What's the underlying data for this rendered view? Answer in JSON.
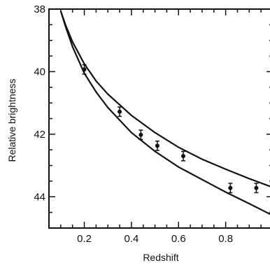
{
  "chart_data": {
    "type": "scatter",
    "title": "",
    "xlabel": "Redshift",
    "ylabel": "Relative brightness",
    "xlim": [
      0.05,
      1.0
    ],
    "ylim": [
      38,
      45
    ],
    "y_inverted": true,
    "grid": false,
    "legend": "none",
    "x_ticks": [
      "0.2",
      "0.4",
      "0.6",
      "0.8"
    ],
    "x_tick_values": [
      0.2,
      0.4,
      0.6,
      0.8
    ],
    "y_ticks": [
      "38",
      "40",
      "42",
      "44"
    ],
    "y_tick_values": [
      38,
      40,
      42,
      44
    ],
    "points": [
      {
        "x": 0.2,
        "y": 39.93,
        "err": 0.15
      },
      {
        "x": 0.35,
        "y": 41.28,
        "err": 0.15
      },
      {
        "x": 0.44,
        "y": 42.02,
        "err": 0.15
      },
      {
        "x": 0.51,
        "y": 42.37,
        "err": 0.15
      },
      {
        "x": 0.62,
        "y": 42.7,
        "err": 0.15
      },
      {
        "x": 0.82,
        "y": 43.72,
        "err": 0.15
      },
      {
        "x": 0.93,
        "y": 43.72,
        "err": 0.15
      }
    ],
    "curves": [
      {
        "x": [
          0.1,
          0.12,
          0.15,
          0.2,
          0.25,
          0.3,
          0.4,
          0.5,
          0.6,
          0.7,
          0.8,
          0.9,
          1.0
        ],
        "y": [
          38.06,
          38.5,
          39.05,
          39.75,
          40.3,
          40.72,
          41.4,
          41.95,
          42.42,
          42.8,
          43.12,
          43.42,
          43.7
        ]
      },
      {
        "x": [
          0.1,
          0.12,
          0.15,
          0.2,
          0.25,
          0.3,
          0.4,
          0.5,
          0.6,
          0.7,
          0.8,
          0.9,
          1.0
        ],
        "y": [
          38.06,
          38.55,
          39.2,
          40.05,
          40.65,
          41.15,
          41.95,
          42.55,
          43.05,
          43.45,
          43.85,
          44.22,
          44.6
        ]
      }
    ],
    "colors": {
      "ink": "#111111",
      "background": "#ffffff"
    }
  }
}
